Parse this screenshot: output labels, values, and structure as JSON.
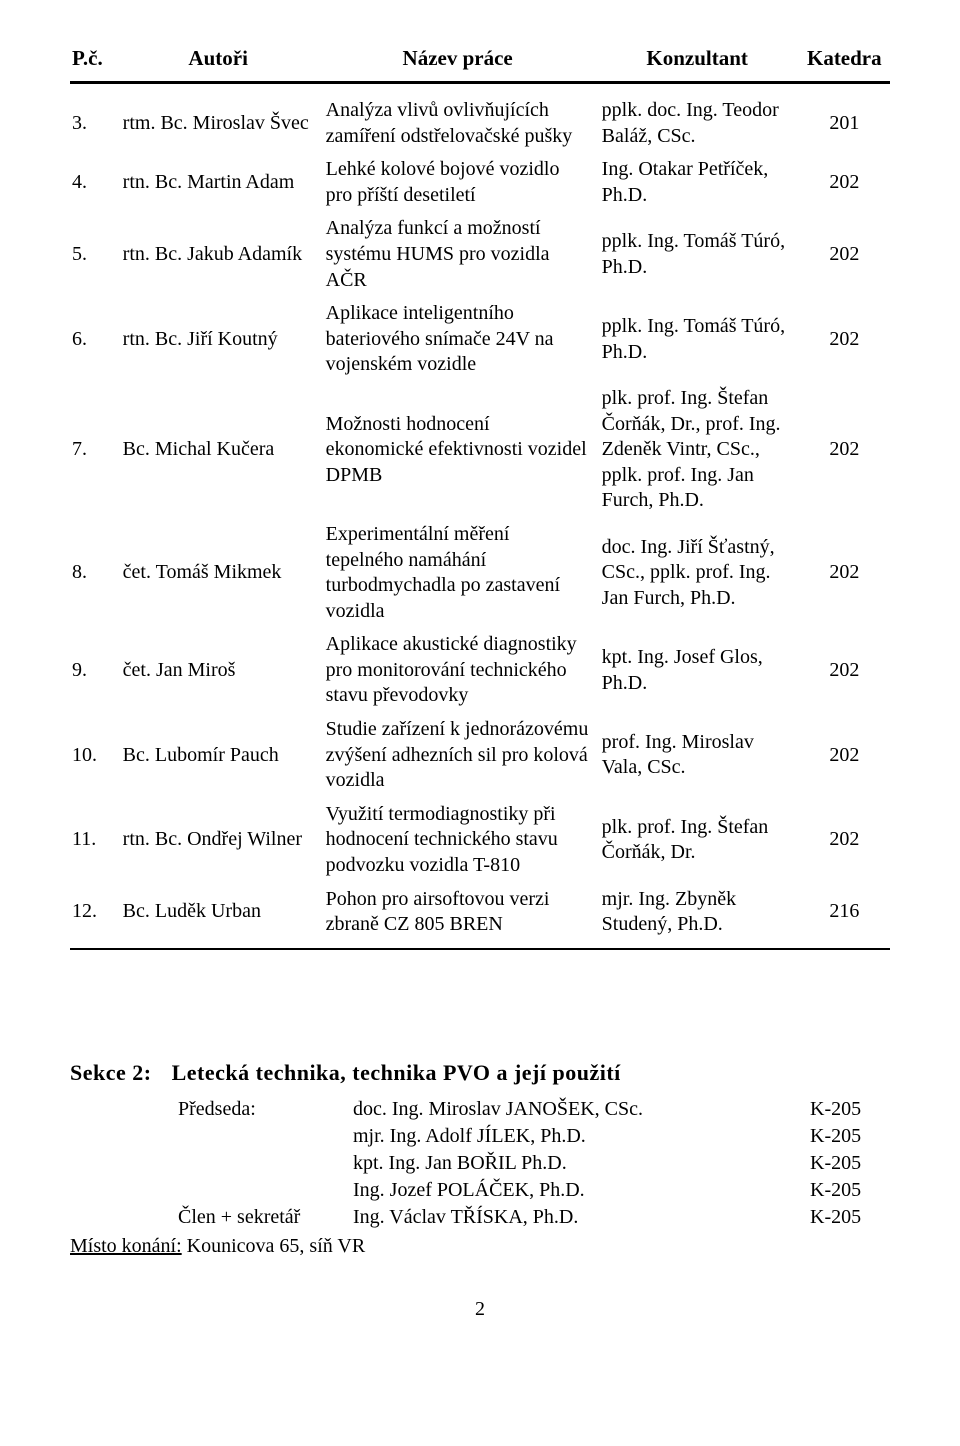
{
  "table": {
    "headers": {
      "num": "P.č.",
      "authors": "Autoři",
      "title": "Název práce",
      "consultant": "Konzultant",
      "dept": "Katedra"
    },
    "rows": [
      {
        "num": "3.",
        "author": "rtm. Bc. Miroslav Švec",
        "title": "Analýza vlivů ovlivňujících zamíření odstřelovačské pušky",
        "consultant": "pplk. doc. Ing. Teodor Baláž, CSc.",
        "dept": "201"
      },
      {
        "num": "4.",
        "author": "rtn. Bc. Martin Adam",
        "title": "Lehké kolové bojové vozidlo pro příští desetiletí",
        "consultant": "Ing. Otakar Petříček, Ph.D.",
        "dept": "202"
      },
      {
        "num": "5.",
        "author": "rtn. Bc. Jakub Adamík",
        "title": "Analýza funkcí a možností systému HUMS pro vozidla AČR",
        "consultant": "pplk. Ing. Tomáš Túró, Ph.D.",
        "dept": "202"
      },
      {
        "num": "6.",
        "author": "rtn. Bc. Jiří Koutný",
        "title": "Aplikace inteligentního bateriového snímače 24V na vojenském vozidle",
        "consultant": "pplk. Ing. Tomáš Túró, Ph.D.",
        "dept": "202"
      },
      {
        "num": "7.",
        "author": "Bc. Michal Kučera",
        "title": "Možnosti hodnocení ekonomické efektivnosti vozidel DPMB",
        "consultant": "plk. prof. Ing. Štefan Čorňák, Dr., prof. Ing. Zdeněk Vintr, CSc., pplk. prof. Ing. Jan Furch, Ph.D.",
        "dept": "202"
      },
      {
        "num": "8.",
        "author": "čet. Tomáš Mikmek",
        "title": "Experimentální měření tepelného namáhání turbodmychadla po zastavení vozidla",
        "consultant": "doc. Ing. Jiří Šťastný, CSc., pplk. prof. Ing. Jan Furch, Ph.D.",
        "dept": "202"
      },
      {
        "num": "9.",
        "author": "čet. Jan Miroš",
        "title": "Aplikace akustické diagnostiky pro monitorování technického stavu převodovky",
        "consultant": "kpt. Ing. Josef Glos, Ph.D.",
        "dept": "202"
      },
      {
        "num": "10.",
        "author": "Bc. Lubomír Pauch",
        "title": "Studie zařízení k jednorázovému zvýšení adhezních sil pro kolová vozidla",
        "consultant": "prof. Ing. Miroslav Vala, CSc.",
        "dept": "202"
      },
      {
        "num": "11.",
        "author": "rtn. Bc. Ondřej Wilner",
        "title": "Využití termodiagnostiky při hodnocení technického stavu podvozku vozidla T-810",
        "consultant": "plk. prof. Ing. Štefan Čorňák, Dr.",
        "dept": "202"
      },
      {
        "num": "12.",
        "author": "Bc. Luděk Urban",
        "title": "Pohon pro airsoftovou verzi zbraně CZ 805 BREN",
        "consultant": "mjr. Ing. Zbyněk Studený, Ph.D.",
        "dept": "216"
      }
    ]
  },
  "section": {
    "label": "Sekce 2:",
    "title": "Letecká technika, technika PVO a její použití",
    "committee": [
      {
        "role": "Předseda:",
        "name": "doc. Ing. Miroslav JANOŠEK, CSc.",
        "k": "K-205"
      },
      {
        "role": "",
        "name": "mjr. Ing. Adolf JÍLEK, Ph.D.",
        "k": "K-205"
      },
      {
        "role": "",
        "name": "kpt. Ing. Jan BOŘIL Ph.D.",
        "k": "K-205"
      },
      {
        "role": "",
        "name": "Ing. Jozef POLÁČEK, Ph.D.",
        "k": "K-205"
      },
      {
        "role": "Člen + sekretář",
        "name": "Ing. Václav TŘÍSKA, Ph.D.",
        "k": "K-205"
      }
    ],
    "location_label": "Místo konání:",
    "location_value": " Kounicova 65, síň VR"
  },
  "page_number": "2"
}
